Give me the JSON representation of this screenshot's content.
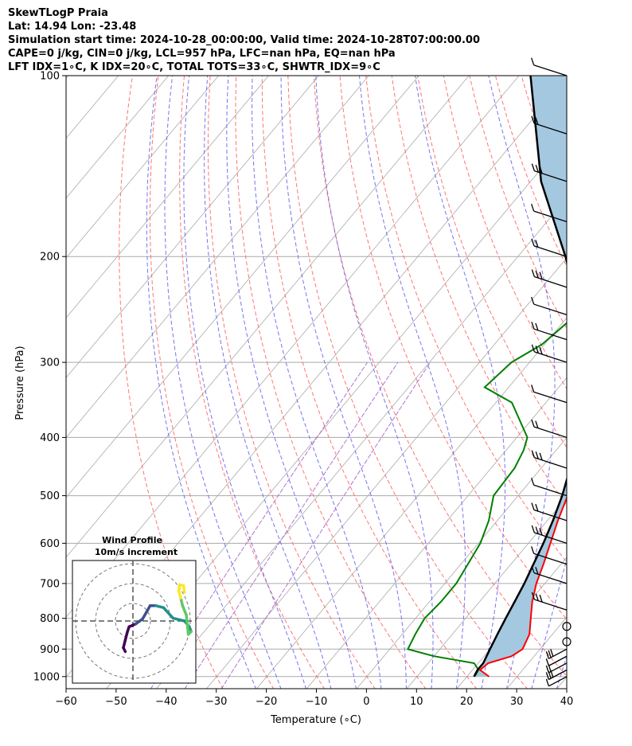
{
  "header": {
    "line1": "SkewTLogP Praia",
    "line2": "Lat: 14.94   Lon: -23.48",
    "line3": "Simulation start time: 2024-10-28_00:00:00, Valid time: 2024-10-28T07:00:00.00",
    "line4": "CAPE=0 j/kg, CIN=0 j/kg, LCL=957 hPa, LFC=nan hPa, EQ=nan hPa",
    "line5": "LFT IDX=1∘C, K IDX=20∘C, TOTAL TOTS=33∘C, SHWTR_IDX=9∘C"
  },
  "colors": {
    "temperature": "#ff0000",
    "dewpoint": "#008000",
    "parcel": "#000000",
    "shade": "#a3c8e0",
    "dry_adiabat": "#ff6666",
    "moist_adiabat": "#6666ee",
    "mixing_ratio": "#aa66cc",
    "isotherm": "#aaaaaa"
  },
  "chart_data": {
    "type": "line",
    "xlabel": "Temperature (∘C)",
    "ylabel": "Pressure (hPa)",
    "xlim": [
      -60,
      40
    ],
    "ylim": [
      1050,
      100
    ],
    "y_scale": "log",
    "xticks": [
      "−60",
      "−50",
      "−40",
      "−30",
      "−20",
      "−10",
      "0",
      "10",
      "20",
      "30",
      "40"
    ],
    "yticks": [
      "100",
      "200",
      "300",
      "400",
      "500",
      "600",
      "700",
      "800",
      "900",
      "1000"
    ],
    "grid": true,
    "series": [
      {
        "key": "temperature",
        "points": [
          [
            1000,
            24.4
          ],
          [
            975,
            21.5
          ],
          [
            950,
            22.0
          ],
          [
            925,
            25.5
          ],
          [
            900,
            26.5
          ],
          [
            850,
            25.4
          ],
          [
            800,
            23.0
          ],
          [
            750,
            20.5
          ],
          [
            700,
            18.3
          ],
          [
            650,
            16.5
          ],
          [
            600,
            14.4
          ],
          [
            550,
            12.1
          ],
          [
            500,
            9.9
          ],
          [
            450,
            7.0
          ],
          [
            400,
            4.3
          ],
          [
            370,
            1.5
          ],
          [
            350,
            -0.7
          ],
          [
            300,
            -6.7
          ],
          [
            270,
            -11.0
          ],
          [
            250,
            -14.2
          ],
          [
            230,
            -18.0
          ],
          [
            200,
            -24.8
          ],
          [
            175,
            -32.4
          ],
          [
            160,
            -37.4
          ],
          [
            150,
            -39.4
          ],
          [
            140,
            -40.2
          ],
          [
            120,
            -39.0
          ],
          [
            100,
            -34.5
          ]
        ]
      },
      {
        "key": "dewpoint",
        "points": [
          [
            1000,
            21.5
          ],
          [
            975,
            21.2
          ],
          [
            950,
            19.2
          ],
          [
            925,
            10.0
          ],
          [
            900,
            3.6
          ],
          [
            850,
            2.6
          ],
          [
            800,
            1.8
          ],
          [
            750,
            2.3
          ],
          [
            700,
            2.3
          ],
          [
            650,
            1.4
          ],
          [
            600,
            0.4
          ],
          [
            550,
            -1.7
          ],
          [
            500,
            -4.9
          ],
          [
            450,
            -5.3
          ],
          [
            420,
            -6.5
          ],
          [
            400,
            -7.9
          ],
          [
            350,
            -16.8
          ],
          [
            330,
            -24.8
          ],
          [
            300,
            -23.6
          ],
          [
            280,
            -20.5
          ],
          [
            250,
            -18.6
          ],
          [
            230,
            -20.0
          ],
          [
            200,
            -25.5
          ],
          [
            175,
            -32.0
          ],
          [
            160,
            -37.4
          ],
          [
            140,
            -44.6
          ],
          [
            130,
            -47.0
          ],
          [
            115,
            -45.0
          ],
          [
            100,
            -40.5
          ]
        ]
      },
      {
        "key": "parcel",
        "points": [
          [
            1000,
            21.4
          ],
          [
            975,
            21.0
          ],
          [
            950,
            21.0
          ],
          [
            900,
            20.0
          ],
          [
            850,
            19.0
          ],
          [
            800,
            18.0
          ],
          [
            750,
            17.0
          ],
          [
            700,
            15.9
          ],
          [
            650,
            14.5
          ],
          [
            600,
            13.0
          ],
          [
            550,
            11.1
          ],
          [
            500,
            8.8
          ],
          [
            450,
            5.8
          ],
          [
            400,
            2.1
          ],
          [
            350,
            -2.8
          ],
          [
            300,
            -9.1
          ],
          [
            250,
            -17.8
          ],
          [
            200,
            -30.5
          ],
          [
            150,
            -47.9
          ],
          [
            100,
            -67.7
          ]
        ]
      }
    ],
    "wind_barbs_levels": [
      100,
      125,
      150,
      175,
      200,
      225,
      250,
      275,
      300,
      350,
      400,
      450,
      500,
      550,
      600,
      650,
      700,
      775,
      825,
      875,
      900,
      925,
      950,
      975,
      1000
    ],
    "wind_profile": {
      "title": "Wind Profile",
      "subtitle": "10m/s increment",
      "rings": 3,
      "points": [
        [
          -0.8,
          -3.2
        ],
        [
          -1,
          -2.8
        ],
        [
          -0.8,
          -2
        ],
        [
          -0.6,
          -1.2
        ],
        [
          -0.4,
          -0.6
        ],
        [
          0.3,
          -0.3
        ],
        [
          1,
          0.2
        ],
        [
          1.4,
          0.9
        ],
        [
          1.8,
          1.6
        ],
        [
          2.4,
          1.6
        ],
        [
          3.2,
          1.4
        ],
        [
          4.2,
          0.3
        ],
        [
          5.4,
          0
        ],
        [
          5.9,
          -0.6
        ],
        [
          6.1,
          -1.1
        ],
        [
          5.8,
          -1.4
        ],
        [
          5.6,
          0.6
        ],
        [
          5.2,
          1.6
        ],
        [
          5,
          2.4
        ],
        [
          4.8,
          3.2
        ],
        [
          4.9,
          3.8
        ],
        [
          5.3,
          3.7
        ],
        [
          5.4,
          3.0
        ]
      ]
    }
  }
}
